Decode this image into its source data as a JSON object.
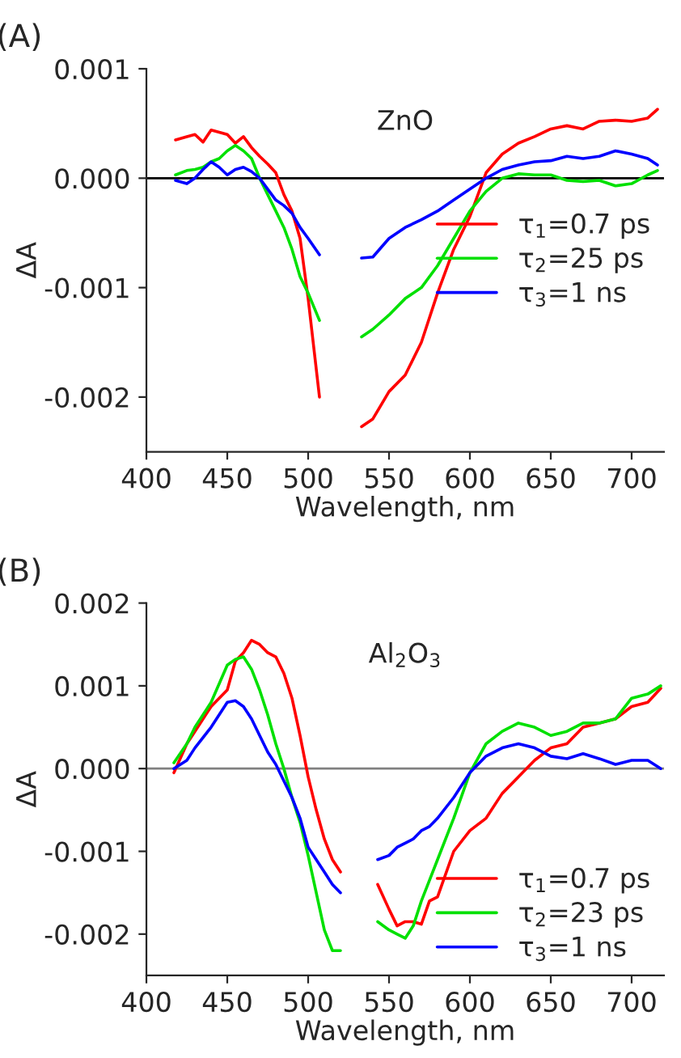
{
  "chart_data": [
    {
      "type": "line",
      "annotations": [
        "(A)",
        "ZnO"
      ],
      "xlabel": "Wavelength, nm",
      "ylabel": "ΔA",
      "x": [
        418,
        425,
        430,
        435,
        440,
        445,
        450,
        455,
        460,
        465,
        470,
        475,
        480,
        485,
        490,
        495,
        500,
        507,
        520,
        533,
        540,
        550,
        560,
        570,
        580,
        590,
        600,
        610,
        620,
        630,
        640,
        650,
        660,
        670,
        680,
        690,
        700,
        710,
        716
      ],
      "series": [
        {
          "name": "τ$_{1}$=0.7 ps",
          "color": "#ff0000",
          "values": [
            0.00035,
            0.00038,
            0.0004,
            0.00033,
            0.00044,
            0.00042,
            0.0004,
            0.00032,
            0.00038,
            0.00028,
            0.0002,
            0.00013,
            5e-05,
            -0.00015,
            -0.0003,
            -0.00055,
            -0.0011,
            -0.002,
            null,
            -0.00227,
            -0.0022,
            -0.00195,
            -0.0018,
            -0.0015,
            -0.00105,
            -0.00065,
            -0.00035,
            5e-05,
            0.00022,
            0.00032,
            0.00038,
            0.00045,
            0.00048,
            0.00045,
            0.00052,
            0.00053,
            0.00052,
            0.00055,
            0.00063
          ]
        },
        {
          "name": "τ$_{2}$=25 ps",
          "color": "#00e000",
          "values": [
            3e-05,
            7e-05,
            8e-05,
            0.0001,
            0.00015,
            0.00018,
            0.00025,
            0.0003,
            0.00025,
            0.00018,
            0.0,
            -0.00015,
            -0.0003,
            -0.00045,
            -0.00065,
            -0.0009,
            -0.00105,
            -0.0013,
            null,
            -0.00145,
            -0.00138,
            -0.00125,
            -0.0011,
            -0.001,
            -0.0008,
            -0.00055,
            -0.0003,
            -0.00012,
            0.0,
            4e-05,
            3e-05,
            3e-05,
            -2e-05,
            -3e-05,
            -2e-05,
            -7e-05,
            -5e-05,
            3e-05,
            7e-05
          ]
        },
        {
          "name": "τ$_{3}$=1 ns",
          "color": "#0000ff",
          "values": [
            -2e-05,
            -5e-05,
            0.0,
            8e-05,
            0.00015,
            0.0001,
            3e-05,
            8e-05,
            0.0001,
            6e-05,
            0.0,
            -0.0001,
            -0.0002,
            -0.00025,
            -0.00032,
            -0.00045,
            -0.00055,
            -0.0007,
            null,
            -0.00073,
            -0.00072,
            -0.00055,
            -0.00045,
            -0.00038,
            -0.0003,
            -0.0002,
            -0.0001,
            0.0,
            8e-05,
            0.00012,
            0.00015,
            0.00016,
            0.0002,
            0.00018,
            0.0002,
            0.00025,
            0.00022,
            0.00018,
            0.00012
          ]
        }
      ],
      "xlim": [
        400,
        720
      ],
      "xticks": [
        400,
        450,
        500,
        550,
        600,
        650,
        700
      ],
      "ylim": [
        -0.0025,
        0.001
      ],
      "yticks": [
        {
          "value": -0.002,
          "label": "-0.002"
        },
        {
          "value": -0.001,
          "label": "-0.001"
        },
        {
          "value": 0,
          "label": "0.000"
        },
        {
          "value": 0.001,
          "label": "0.001"
        }
      ],
      "ref_lines": [
        {
          "axis": "y",
          "value": 0,
          "color": "#000000"
        }
      ],
      "legend": "right",
      "grid": false,
      "marker": "none",
      "line_style": "solid"
    },
    {
      "type": "line",
      "annotations": [
        "(B)",
        "Al$_{2}$O$_{3}$"
      ],
      "xlabel": "Wavelength, nm",
      "ylabel": "ΔA",
      "x": [
        417,
        425,
        430,
        440,
        450,
        455,
        460,
        465,
        470,
        475,
        480,
        485,
        490,
        495,
        500,
        505,
        510,
        515,
        520,
        530,
        543,
        550,
        555,
        560,
        565,
        570,
        575,
        580,
        590,
        600,
        610,
        620,
        630,
        640,
        650,
        660,
        670,
        680,
        690,
        700,
        710,
        718
      ],
      "series": [
        {
          "name": "τ$_{1}$=0.7 ps",
          "color": "#ff0000",
          "values": [
            -5e-05,
            0.0003,
            0.00045,
            0.00075,
            0.00095,
            0.0013,
            0.0014,
            0.00155,
            0.0015,
            0.0014,
            0.00135,
            0.00115,
            0.00085,
            0.0004,
            -0.0001,
            -0.0005,
            -0.00085,
            -0.0011,
            -0.00125,
            null,
            -0.0014,
            -0.0017,
            -0.0019,
            -0.00185,
            -0.00185,
            -0.00188,
            -0.0016,
            -0.00155,
            -0.001,
            -0.00075,
            -0.0006,
            -0.0003,
            -0.0001,
            0.0001,
            0.00025,
            0.0003,
            0.0005,
            0.00055,
            0.0006,
            0.00075,
            0.0008,
            0.00097
          ]
        },
        {
          "name": "τ$_{2}$=23 ps",
          "color": "#00e000",
          "values": [
            7e-05,
            0.0003,
            0.0005,
            0.0008,
            0.00125,
            0.00132,
            0.00135,
            0.0012,
            0.00095,
            0.00065,
            0.0003,
            0.0,
            -0.00035,
            -0.00065,
            -0.00105,
            -0.0015,
            -0.00195,
            -0.0022,
            -0.0022,
            null,
            -0.00185,
            -0.00195,
            -0.002,
            -0.00205,
            -0.0019,
            -0.0016,
            -0.00135,
            -0.0011,
            -0.0006,
            -5e-05,
            0.0003,
            0.00045,
            0.00055,
            0.0005,
            0.0004,
            0.00045,
            0.00055,
            0.00055,
            0.0006,
            0.00085,
            0.0009,
            0.001
          ]
        },
        {
          "name": "τ$_{3}$=1 ns",
          "color": "#0000ff",
          "values": [
            0.0,
            0.0001,
            0.00025,
            0.0005,
            0.0008,
            0.00082,
            0.00075,
            0.0006,
            0.0004,
            0.0002,
            5e-05,
            -0.00015,
            -0.00035,
            -0.0006,
            -0.00095,
            -0.0011,
            -0.00125,
            -0.0014,
            -0.0015,
            null,
            -0.0011,
            -0.00105,
            -0.00095,
            -0.0009,
            -0.00085,
            -0.00075,
            -0.0007,
            -0.0006,
            -0.00035,
            -5e-05,
            0.00015,
            0.00025,
            0.0003,
            0.00025,
            0.00015,
            0.00012,
            0.00018,
            0.00012,
            5e-05,
            0.0001,
            0.0001,
            0.0
          ]
        }
      ],
      "xlim": [
        400,
        720
      ],
      "xticks": [
        400,
        450,
        500,
        550,
        600,
        650,
        700
      ],
      "ylim": [
        -0.0025,
        0.002
      ],
      "yticks": [
        {
          "value": -0.002,
          "label": "-0.002"
        },
        {
          "value": -0.001,
          "label": "-0.001"
        },
        {
          "value": 0,
          "label": "0.000"
        },
        {
          "value": 0.001,
          "label": "0.001"
        },
        {
          "value": 0.002,
          "label": "0.002"
        }
      ],
      "ref_lines": [
        {
          "axis": "y",
          "value": 0,
          "color": "#808080"
        }
      ],
      "legend": "bottom right",
      "grid": false,
      "marker": "none",
      "line_style": "solid"
    }
  ]
}
